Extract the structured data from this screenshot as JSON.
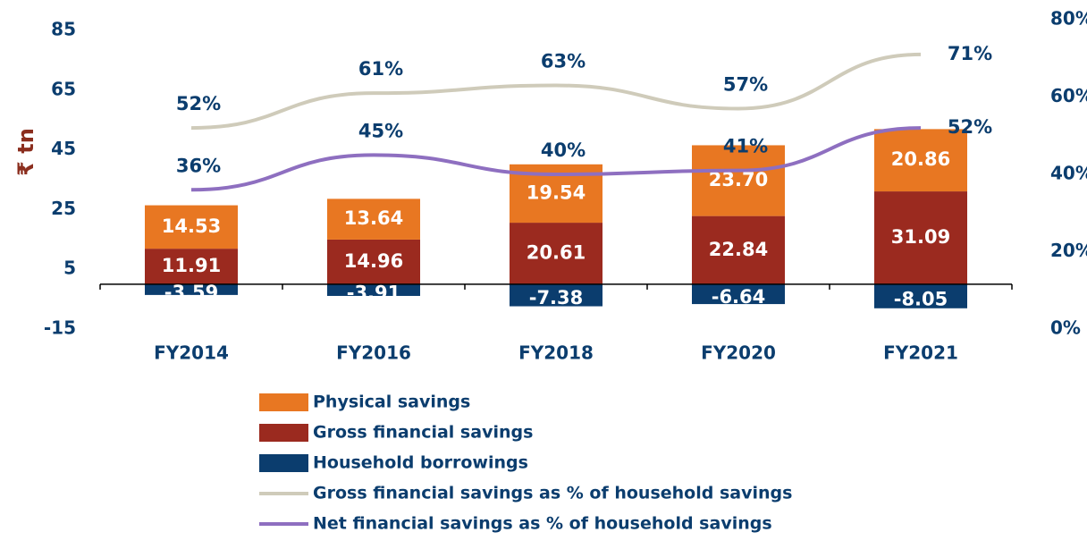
{
  "chart_data": {
    "type": "bar",
    "y_axis_label": "₹ tn",
    "categories": [
      "FY2014",
      "FY2016",
      "FY2018",
      "FY2020",
      "FY2021"
    ],
    "ylim": [
      -15,
      85
    ],
    "yticks": [
      -15,
      5,
      25,
      45,
      65,
      85
    ],
    "y2lim": [
      0,
      80
    ],
    "y2ticks": [
      {
        "value": 0,
        "label": "0%"
      },
      {
        "value": 20,
        "label": "20%"
      },
      {
        "value": 40,
        "label": "40%"
      },
      {
        "value": 60,
        "label": "60%"
      },
      {
        "value": 80,
        "label": "80%"
      }
    ],
    "stacked": true,
    "series": [
      {
        "name": "Physical savings",
        "type": "bar",
        "color": "#E87722",
        "values": [
          14.53,
          13.64,
          19.54,
          23.7,
          20.86
        ],
        "value_labels": [
          "14.53",
          "13.64",
          "19.54",
          "23.70",
          "20.86"
        ]
      },
      {
        "name": "Gross financial savings",
        "type": "bar",
        "color": "#9B2A1F",
        "values": [
          11.91,
          14.96,
          20.61,
          22.84,
          31.09
        ],
        "value_labels": [
          "11.91",
          "14.96",
          "20.61",
          "22.84",
          "31.09"
        ]
      },
      {
        "name": "Household borrowings",
        "type": "bar",
        "color": "#0B3D6E",
        "values": [
          -3.59,
          -3.91,
          -7.38,
          -6.64,
          -8.05
        ],
        "value_labels": [
          "-3.59",
          "-3.91",
          "-7.38",
          "-6.64",
          "-8.05"
        ]
      },
      {
        "name": "Gross financial savings as % of household savings",
        "type": "line",
        "axis": "y2",
        "color": "#CFCBBA",
        "values": [
          52,
          61,
          63,
          57,
          71
        ],
        "value_labels": [
          "52%",
          "61%",
          "63%",
          "57%",
          "71%"
        ]
      },
      {
        "name": "Net financial savings as % of household savings",
        "type": "line",
        "axis": "y2",
        "color": "#8E6FC0",
        "values": [
          36,
          45,
          40,
          41,
          52
        ],
        "value_labels": [
          "36%",
          "45%",
          "40%",
          "41%",
          "52%"
        ]
      }
    ]
  }
}
